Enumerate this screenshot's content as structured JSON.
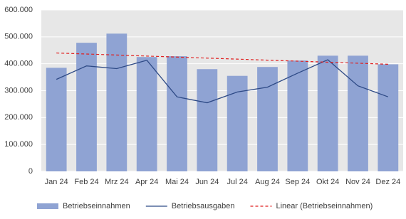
{
  "chart_data": {
    "type": "combo",
    "categories": [
      "Jan 24",
      "Feb 24",
      "Mrz 24",
      "Apr 24",
      "Mai 24",
      "Jun 24",
      "Jul 24",
      "Aug 24",
      "Sep 24",
      "Okt 24",
      "Nov 24",
      "Dez 24"
    ],
    "series": [
      {
        "name": "Betriebseinnahmen",
        "type": "bar",
        "color": "#8fa3d3",
        "values": [
          385000,
          478000,
          512000,
          425000,
          428000,
          380000,
          355000,
          388000,
          412000,
          430000,
          430000,
          398000
        ]
      },
      {
        "name": "Betriebsausgaben",
        "type": "line",
        "color": "#2e4a86",
        "values": [
          342000,
          392000,
          382000,
          413000,
          277000,
          255000,
          295000,
          313000,
          365000,
          415000,
          318000,
          277000
        ]
      },
      {
        "name": "Linear (Betriebseinnahmen)",
        "type": "dashed-line",
        "color": "#e02020",
        "values": [
          440000,
          436200,
          432400,
          428600,
          424800,
          421000,
          417200,
          413400,
          409600,
          405800,
          402000,
          398200
        ]
      }
    ],
    "ylim": [
      0,
      600000
    ],
    "yticks": [
      0,
      {
        "value": 100000,
        "label": "100.000"
      },
      {
        "value": 200000,
        "label": "200.000"
      },
      {
        "value": 300000,
        "label": "300.000"
      },
      {
        "value": 400000,
        "label": "400.000"
      },
      {
        "value": 500000,
        "label": "500.000"
      },
      {
        "value": 600000,
        "label": "600.000"
      }
    ],
    "grid": true,
    "legend": "bottom"
  }
}
